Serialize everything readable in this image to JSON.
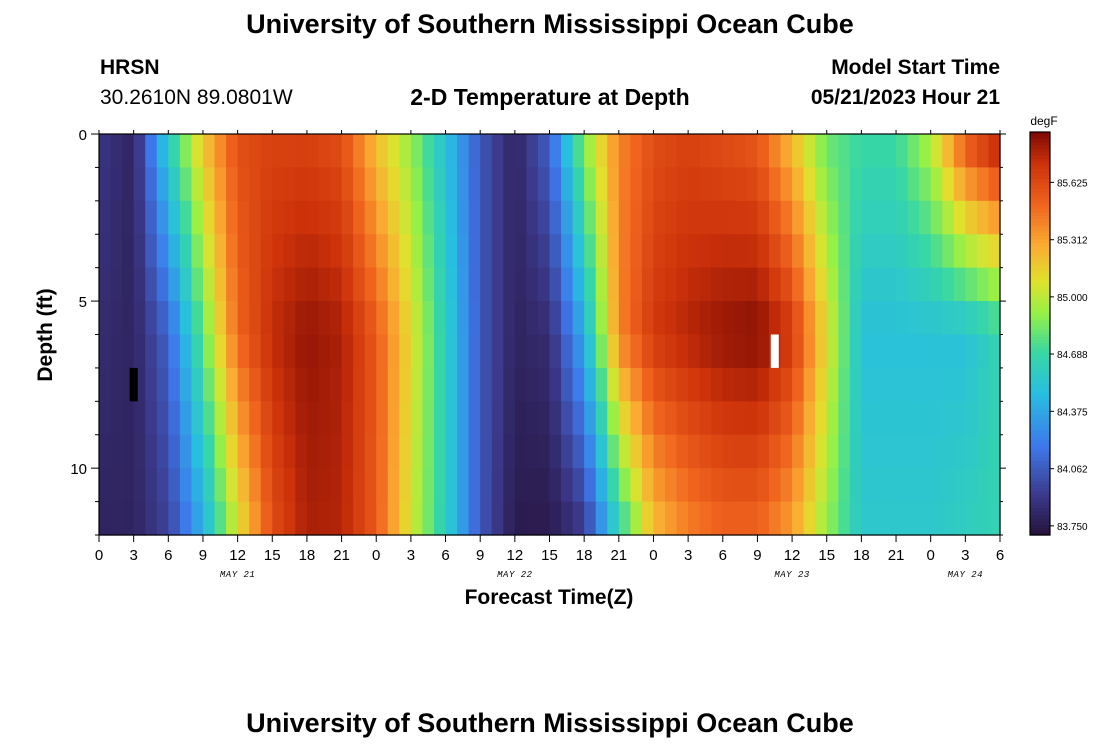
{
  "header": {
    "title": "University of Southern Mississippi Ocean Cube",
    "station": "HRSN",
    "coords": "30.2610N  89.0801W",
    "subtitle": "2-D Temperature at Depth",
    "start_label": "Model Start Time",
    "start_value": "05/21/2023 Hour 21"
  },
  "footer": {
    "title": "University of Southern Mississippi Ocean Cube"
  },
  "chart_data": {
    "type": "heatmap",
    "title": "2-D Temperature at Depth",
    "xlabel": "Forecast Time(Z)",
    "ylabel": "Depth (ft)",
    "x_tick_labels": [
      "0",
      "3",
      "6",
      "9",
      "12",
      "15",
      "18",
      "21",
      "0",
      "3",
      "6",
      "9",
      "12",
      "15",
      "18",
      "21",
      "0",
      "3",
      "6",
      "9",
      "12",
      "15",
      "18",
      "21",
      "0",
      "3",
      "6"
    ],
    "x_date_labels": [
      {
        "label": "MAY 21",
        "hour_index": 4
      },
      {
        "label": "MAY 22",
        "hour_index": 12
      },
      {
        "label": "MAY 23",
        "hour_index": 20
      },
      {
        "label": "MAY 24",
        "hour_index": 25
      }
    ],
    "x_range_hours": [
      0,
      78
    ],
    "y_ticks": [
      0,
      5,
      10
    ],
    "y_range_ft": [
      0,
      12
    ],
    "y_inverted": true,
    "colorbar": {
      "unit": "degF",
      "tick_labels": [
        "85.625",
        "85.312",
        "85.000",
        "84.688",
        "84.375",
        "84.062",
        "83.750"
      ],
      "range": [
        83.7,
        85.9
      ]
    },
    "markers": [
      {
        "color": "#000000",
        "hour": 3,
        "depth_ft": 8
      },
      {
        "color": "#ffffff",
        "hour": 58.5,
        "depth_ft": 7
      }
    ],
    "time_hours": [
      0,
      3,
      6,
      9,
      12,
      15,
      18,
      21,
      24,
      27,
      30,
      33,
      36,
      39,
      42,
      45,
      48,
      51,
      54,
      57,
      60,
      63,
      66,
      69,
      72,
      75,
      78
    ],
    "depth_ft": [
      0,
      6,
      12
    ],
    "values_degF": [
      [
        83.9,
        83.8,
        84.6,
        85.2,
        85.6,
        85.65,
        85.65,
        85.6,
        85.2,
        84.9,
        84.5,
        84.05,
        83.8,
        84.1,
        84.9,
        85.4,
        85.6,
        85.65,
        85.6,
        85.55,
        85.2,
        84.8,
        84.7,
        84.7,
        85.0,
        85.6,
        85.85
      ],
      [
        83.85,
        83.8,
        84.1,
        84.8,
        85.5,
        85.75,
        85.85,
        85.8,
        85.55,
        85.1,
        84.6,
        84.05,
        83.8,
        83.85,
        84.4,
        85.4,
        85.7,
        85.78,
        85.85,
        85.88,
        85.7,
        85.1,
        84.5,
        84.5,
        84.5,
        84.5,
        84.65
      ],
      [
        83.8,
        83.8,
        83.95,
        84.4,
        85.05,
        85.6,
        85.8,
        85.78,
        85.55,
        85.05,
        84.6,
        84.05,
        83.75,
        83.75,
        83.9,
        84.6,
        85.2,
        85.4,
        85.5,
        85.5,
        85.3,
        84.9,
        84.55,
        84.55,
        84.55,
        84.6,
        84.65
      ]
    ]
  }
}
